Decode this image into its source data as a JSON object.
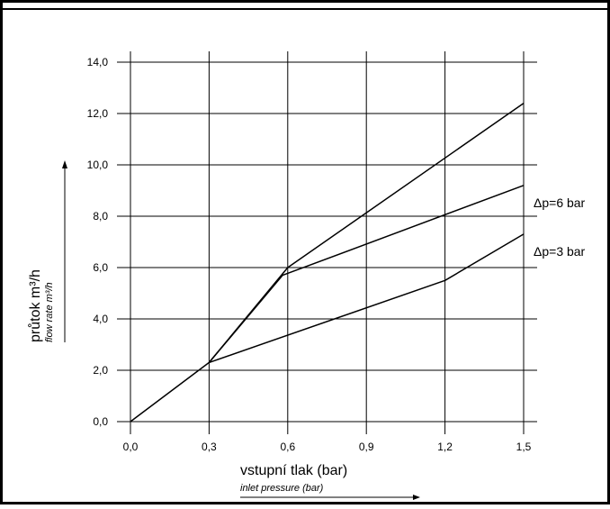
{
  "chart_data": {
    "type": "line",
    "xlabel": "vstupní tlak (bar)",
    "xlabel_secondary": "inlet pressure (bar)",
    "ylabel": "průtok m³/h",
    "ylabel_secondary": "flow rate m³/h",
    "x_ticks": [
      "0,0",
      "0,3",
      "0,6",
      "0,9",
      "1,2",
      "1,5"
    ],
    "y_ticks": [
      "0,0",
      "2,0",
      "4,0",
      "6,0",
      "8,0",
      "10,0",
      "12,0",
      "14,0"
    ],
    "xlim": [
      0,
      1.5
    ],
    "ylim": [
      0,
      14
    ],
    "grid": true,
    "series": [
      {
        "name": "",
        "points": [
          [
            0,
            0
          ],
          [
            0.3,
            2.3
          ],
          [
            0.6,
            6.0
          ],
          [
            1.5,
            12.4
          ]
        ]
      },
      {
        "name": "Δp=6 bar",
        "points": [
          [
            0.3,
            2.3
          ],
          [
            0.58,
            5.7
          ],
          [
            1.5,
            9.2
          ]
        ]
      },
      {
        "name": "Δp=3 bar",
        "points": [
          [
            0.3,
            2.3
          ],
          [
            1.2,
            5.5
          ],
          [
            1.5,
            7.3
          ]
        ]
      }
    ]
  }
}
